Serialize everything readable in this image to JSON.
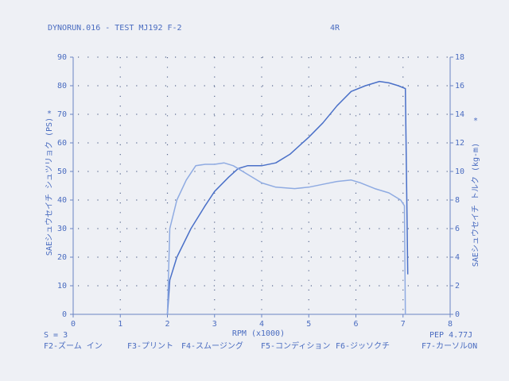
{
  "chart_data": {
    "type": "line",
    "title": "DYNORUN.016 - TEST MJ192 F-2",
    "run_label": "4R",
    "ylabel": "SAEシュウセイチ シュツリョク (PS)",
    "y2label": "SAEシュウセイチ トルク (kg-m)",
    "xlabel": "RPM (x1000)",
    "left_marker": "*",
    "right_marker": "*",
    "status_left": "S = 3",
    "status_right": "PEP 4.77J",
    "function_keys": [
      "F2-ズーム イン",
      "F3-プリント",
      "F4-スムージング",
      "F5-コンディション",
      "F6-ジッソクチ",
      "F7-カーソルON"
    ],
    "xlim": [
      0,
      8
    ],
    "xticks": [
      0,
      1,
      2,
      3,
      4,
      5,
      6,
      7,
      8
    ],
    "ylim": [
      0,
      90
    ],
    "yticks": [
      0,
      10,
      20,
      30,
      40,
      50,
      60,
      70,
      80,
      90
    ],
    "y2lim": [
      0,
      18
    ],
    "y2ticks": [
      0,
      2,
      4,
      6,
      8,
      10,
      12,
      14,
      16,
      18
    ],
    "grid": true,
    "series": [
      {
        "color": "#4a70c8",
        "x": [
          2.0,
          2.05,
          2.2,
          2.5,
          2.8,
          3.0,
          3.3,
          3.5,
          3.7,
          4.0,
          4.3,
          4.6,
          5.0,
          5.3,
          5.6,
          5.9,
          6.2,
          6.5,
          6.7,
          6.9,
          7.05,
          7.08,
          7.1
        ],
        "values": [
          0,
          12,
          20,
          30,
          38,
          43,
          48,
          51,
          52,
          52,
          53,
          56,
          62,
          67,
          73,
          78,
          80,
          81.5,
          81,
          80,
          79,
          40,
          14
        ]
      },
      {
        "color": "#8fabe2",
        "axis": "y2",
        "x": [
          2.0,
          2.05,
          2.2,
          2.4,
          2.6,
          2.8,
          3.0,
          3.2,
          3.4,
          3.7,
          4.0,
          4.3,
          4.7,
          5.0,
          5.3,
          5.6,
          5.9,
          6.1,
          6.4,
          6.7,
          6.95,
          7.03,
          7.05
        ],
        "values": [
          0,
          6,
          8,
          9.4,
          10.4,
          10.5,
          10.5,
          10.6,
          10.4,
          9.8,
          9.2,
          8.9,
          8.8,
          8.9,
          9.1,
          9.3,
          9.4,
          9.2,
          8.8,
          8.5,
          8.0,
          7.6,
          0
        ]
      }
    ]
  }
}
